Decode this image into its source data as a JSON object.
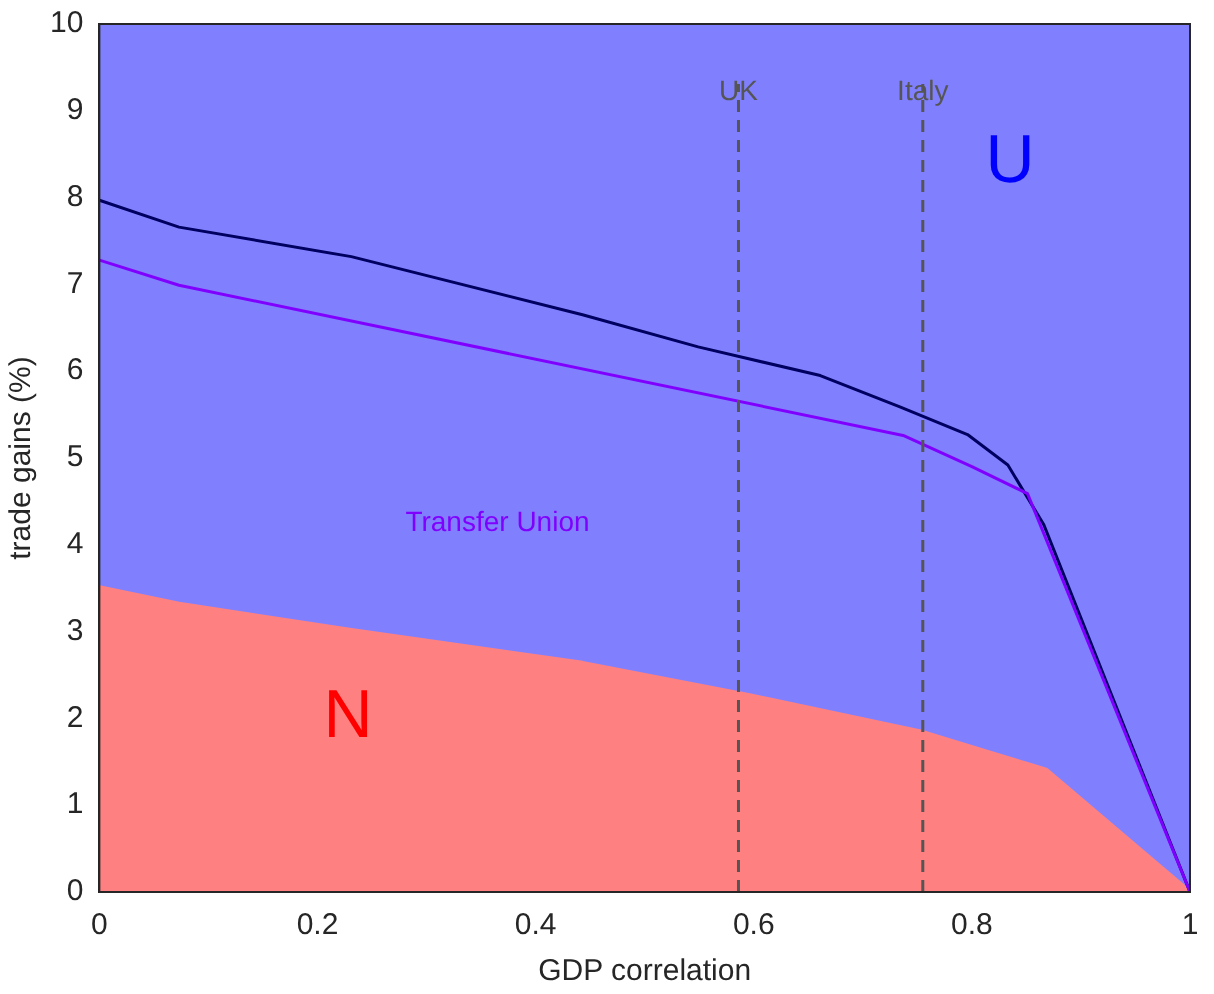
{
  "chart_data": {
    "type": "area",
    "xlabel": "GDP correlation",
    "ylabel": "trade gains (%)",
    "xlim": [
      0,
      1
    ],
    "xticks": [
      0,
      0.2,
      0.4,
      0.6,
      0.8,
      1
    ],
    "ylim": [
      0,
      10
    ],
    "yticks": [
      0,
      1,
      2,
      3,
      4,
      5,
      6,
      7,
      8,
      9,
      10
    ],
    "grid": false,
    "legend": false,
    "series": [
      {
        "color": "#ff8080",
        "x": [
          0,
          0.073,
          0.231,
          0.443,
          0.595,
          0.753,
          0.813,
          0.868,
          1
        ],
        "values": [
          3.51,
          3.32,
          3.02,
          2.64,
          2.27,
          1.85,
          1.62,
          1.41,
          0
        ]
      },
      {
        "type": "line",
        "color": "#000060",
        "x": [
          0,
          0.073,
          0.231,
          0.443,
          0.549,
          0.661,
          0.734,
          0.796,
          0.833,
          0.866,
          1
        ],
        "values": [
          7.97,
          7.66,
          7.32,
          6.65,
          6.28,
          5.95,
          5.59,
          5.27,
          4.92,
          4.23,
          0
        ]
      },
      {
        "type": "line",
        "color": "#8000ff",
        "x": [
          0,
          0.073,
          0.737,
          0.8,
          0.851,
          1
        ],
        "values": [
          7.28,
          6.99,
          5.26,
          4.9,
          4.59,
          0
        ]
      }
    ],
    "ref_lines": [
      {
        "axis": "x",
        "value": 0.586,
        "label": "UK",
        "color": "#555555",
        "line_style": "dashed"
      },
      {
        "axis": "x",
        "value": 0.755,
        "label": "Italy",
        "color": "#555555",
        "line_style": "dashed"
      }
    ],
    "annotations": [
      "U",
      "N",
      "Transfer Union"
    ]
  }
}
